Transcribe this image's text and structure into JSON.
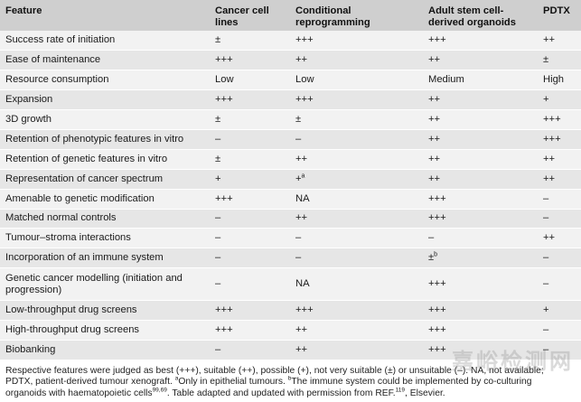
{
  "table": {
    "headers": [
      "Feature",
      "Cancer cell lines",
      "Conditional reprogramming",
      "Adult stem cell-derived organoids",
      "PDTX"
    ],
    "rows": [
      {
        "feature": "Success rate of initiation",
        "cells": [
          "±",
          "+++",
          "+++",
          "++"
        ]
      },
      {
        "feature": "Ease of maintenance",
        "cells": [
          "+++",
          "++",
          "++",
          "±"
        ]
      },
      {
        "feature": "Resource consumption",
        "cells": [
          "Low",
          "Low",
          "Medium",
          "High"
        ]
      },
      {
        "feature": "Expansion",
        "cells": [
          "+++",
          "+++",
          "++",
          "+"
        ]
      },
      {
        "feature": "3D growth",
        "cells": [
          "±",
          "±",
          "++",
          "+++"
        ]
      },
      {
        "feature": "Retention of phenotypic features in vitro",
        "cells": [
          "–",
          "–",
          "++",
          "+++"
        ]
      },
      {
        "feature": "Retention of genetic features in vitro",
        "cells": [
          "±",
          "++",
          "++",
          "++"
        ]
      },
      {
        "feature": "Representation of cancer spectrum",
        "cells": [
          "+",
          "+",
          "++",
          "++"
        ],
        "sup": {
          "col": 1,
          "text": "a"
        }
      },
      {
        "feature": "Amenable to genetic modification",
        "cells": [
          "+++",
          "NA",
          "+++",
          "–"
        ]
      },
      {
        "feature": "Matched normal controls",
        "cells": [
          "–",
          "++",
          "+++",
          "–"
        ]
      },
      {
        "feature": "Tumour–stroma interactions",
        "cells": [
          "–",
          "–",
          "–",
          "++"
        ]
      },
      {
        "feature": "Incorporation of an immune system",
        "cells": [
          "–",
          "–",
          "±",
          "–"
        ],
        "sup": {
          "col": 2,
          "text": "b"
        }
      },
      {
        "feature": "Genetic cancer modelling (initiation and progression)",
        "cells": [
          "–",
          "NA",
          "+++",
          "–"
        ],
        "tall": true
      },
      {
        "feature": "Low-throughput drug screens",
        "cells": [
          "+++",
          "+++",
          "+++",
          "+"
        ]
      },
      {
        "feature": "High-throughput drug screens",
        "cells": [
          "+++",
          "++",
          "+++",
          "–"
        ]
      },
      {
        "feature": "Biobanking",
        "cells": [
          "–",
          "++",
          "+++",
          "–"
        ]
      }
    ]
  },
  "footnote": {
    "line1": "Respective features were judged as best (+++), suitable (++), possible (+), not very suitable (±) or unsuitable (–). NA, not available;",
    "line2_a": "PDTX, patient-derived tumour xenograft.",
    "line2_sup_a": "a",
    "line2_b": "Only in epithelial tumours.",
    "line2_sup_b": "b",
    "line2_c": "The immune system could be implemented by co-culturing",
    "line3_a": "organoids with haematopoietic cells",
    "line3_sup": "99,69",
    "line3_b": ". Table adapted and updated with permission from REF.",
    "line3_ref": "119",
    "line3_c": ", Elsevier."
  },
  "watermark": {
    "text": "嘉峪检测网"
  }
}
